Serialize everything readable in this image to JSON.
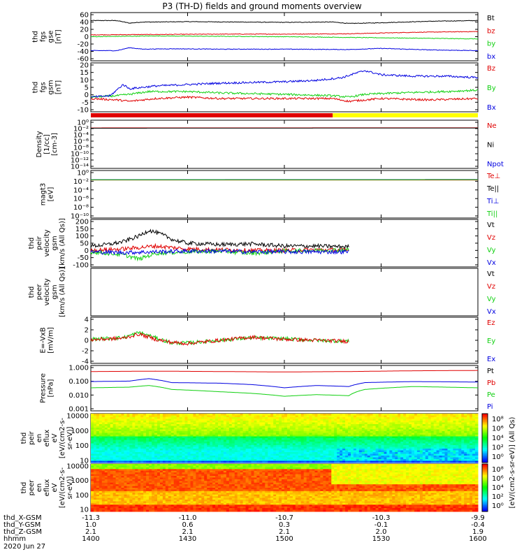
{
  "title": "P3 (TH-D) fields and ground moments overview",
  "colors": {
    "black": "#000000",
    "red": "#e00000",
    "green": "#10d010",
    "blue": "#0000e0",
    "yellow": "#ffff00"
  },
  "chart_data": [
    {
      "type": "line",
      "ylabel": [
        "thd",
        "fgs",
        "gse",
        "[nT]"
      ],
      "ylim": [
        -60,
        60
      ],
      "yticks": [
        "60",
        "40",
        "20",
        "0",
        "-20",
        "-40",
        "-60"
      ],
      "legend": [
        {
          "name": "Bt",
          "color": "#000000"
        },
        {
          "name": "bz",
          "color": "#e00000"
        },
        {
          "name": "by",
          "color": "#10d010"
        },
        {
          "name": "bx",
          "color": "#0000e0"
        }
      ],
      "series": [
        {
          "name": "Bt",
          "color": "#000000",
          "t": [
            1400,
            1408,
            1412,
            1416,
            1420,
            1430,
            1445,
            1500,
            1515,
            1520,
            1530,
            1545,
            1600
          ],
          "y": [
            44,
            44,
            37,
            40,
            40,
            41,
            40,
            39,
            40,
            36,
            38,
            42,
            44
          ]
        },
        {
          "name": "bz",
          "color": "#e00000",
          "t": [
            1400,
            1420,
            1440,
            1500,
            1520,
            1540,
            1600
          ],
          "y": [
            5,
            6,
            7,
            7,
            8,
            12,
            14
          ]
        },
        {
          "name": "by",
          "color": "#10d010",
          "t": [
            1400,
            1410,
            1420,
            1440,
            1500,
            1520,
            1540,
            1600
          ],
          "y": [
            0,
            1,
            2,
            1,
            0,
            -2,
            -4,
            -6
          ]
        },
        {
          "name": "bx",
          "color": "#0000e0",
          "t": [
            1400,
            1408,
            1412,
            1416,
            1425,
            1440,
            1500,
            1520,
            1530,
            1545,
            1600
          ],
          "y": [
            -38,
            -38,
            -30,
            -34,
            -33,
            -34,
            -34,
            -35,
            -32,
            -36,
            -38
          ]
        }
      ]
    },
    {
      "type": "line",
      "ylabel": [
        "thd",
        "fgs",
        "gsm",
        "[nT]"
      ],
      "ylim": [
        -12,
        20
      ],
      "yticks": [
        "20",
        "15",
        "10",
        "5",
        "0",
        "-5",
        "-10"
      ],
      "legend": [
        {
          "name": "Bz",
          "color": "#e00000"
        },
        {
          "name": "By",
          "color": "#10d010"
        },
        {
          "name": "Bx",
          "color": "#0000e0"
        }
      ],
      "series": [
        {
          "name": "Bz",
          "color": "#e00000",
          "t": [
            1400,
            1408,
            1412,
            1420,
            1430,
            1440,
            1500,
            1515,
            1520,
            1530,
            1545,
            1600
          ],
          "y": [
            -4,
            -5,
            -6,
            -4,
            -3,
            -4,
            -4,
            -4,
            -6,
            -4,
            -5,
            -4
          ]
        },
        {
          "name": "By",
          "color": "#10d010",
          "t": [
            1400,
            1408,
            1412,
            1418,
            1430,
            1440,
            1500,
            1515,
            1520,
            1525,
            1535,
            1550,
            1600
          ],
          "y": [
            -3,
            -2,
            -1,
            1,
            1,
            0,
            -1,
            -2,
            -3,
            -1,
            0,
            1,
            2
          ]
        },
        {
          "name": "Bx",
          "color": "#0000e0",
          "t": [
            1400,
            1406,
            1410,
            1412,
            1420,
            1430,
            1440,
            1500,
            1510,
            1518,
            1522,
            1525,
            1530,
            1540,
            1550,
            1600
          ],
          "y": [
            -3,
            -2,
            6,
            3,
            5,
            6,
            7,
            8,
            9,
            11,
            14,
            16,
            13,
            12,
            12,
            11
          ]
        }
      ]
    },
    {
      "type": "line",
      "ylabel": [
        "Density",
        "[1/cc]",
        "[cm-3]"
      ],
      "ylim_log": [
        -14,
        2
      ],
      "yticks": [
        "10⁰",
        "10⁻²",
        "10⁻⁴",
        "10⁻⁶",
        "10⁻⁸",
        "10⁻¹⁰",
        "10⁻¹²",
        "10⁻¹⁴"
      ],
      "legend": [
        {
          "name": "Ne",
          "color": "#e00000"
        },
        {
          "name": "Ni",
          "color": "#000000"
        },
        {
          "name": "Npot",
          "color": "#0000e0"
        }
      ],
      "series": [
        {
          "name": "Ne",
          "color": "#e00000",
          "t": [
            1400,
            1600
          ],
          "y": [
            0.9,
            1.0
          ]
        },
        {
          "name": "Ni",
          "color": "#000000",
          "t": [
            1400,
            1600
          ],
          "y": [
            0.7,
            0.8
          ]
        }
      ]
    },
    {
      "type": "line",
      "ylabel": [
        "magt3",
        "[eV]"
      ],
      "ylim_log": [
        -10,
        2
      ],
      "yticks": [
        "10⁰",
        "10⁻²",
        "10⁻⁴",
        "10⁻⁶",
        "10⁻⁸",
        "10⁻¹⁰"
      ],
      "legend": [
        {
          "name": "Te⊥",
          "color": "#e00000"
        },
        {
          "name": "Te||",
          "color": "#000000"
        },
        {
          "name": "Ti⊥",
          "color": "#0000e0"
        },
        {
          "name": "Ti||",
          "color": "#10d010"
        }
      ],
      "series": [
        {
          "name": "Te⊥",
          "color": "#e00000",
          "t": [
            1400,
            1600
          ],
          "y": [
            0.9,
            0.9
          ]
        },
        {
          "name": "Ti⊥",
          "color": "#0000e0",
          "t": [
            1400,
            1600
          ],
          "y": [
            1.1,
            1.2
          ]
        },
        {
          "name": "Ti||",
          "color": "#10d010",
          "t": [
            1400,
            1600
          ],
          "y": [
            1.0,
            1.1
          ]
        }
      ]
    },
    {
      "type": "line",
      "ylabel": [
        "thd",
        "peir",
        "velocity",
        "gsm",
        "[km/s (All Qs)]"
      ],
      "ylim": [
        -100,
        200
      ],
      "yticks": [
        "200",
        "150",
        "100",
        "50",
        "0",
        "-50",
        "-100"
      ],
      "legend": [
        {
          "name": "Vt",
          "color": "#000000"
        },
        {
          "name": "Vz",
          "color": "#e00000"
        },
        {
          "name": "Vy",
          "color": "#10d010"
        },
        {
          "name": "Vx",
          "color": "#0000e0"
        }
      ],
      "series": [
        {
          "name": "Vt",
          "color": "#000000",
          "t": [
            1400,
            1405,
            1410,
            1415,
            1418,
            1422,
            1426,
            1430,
            1440,
            1450,
            1500,
            1510,
            1520
          ],
          "y": [
            30,
            40,
            60,
            100,
            140,
            110,
            70,
            50,
            40,
            45,
            30,
            30,
            25
          ]
        },
        {
          "name": "Vz",
          "color": "#e00000",
          "t": [
            1400,
            1410,
            1420,
            1430,
            1440,
            1450,
            1500,
            1510,
            1520
          ],
          "y": [
            0,
            10,
            30,
            10,
            5,
            0,
            0,
            5,
            0
          ]
        },
        {
          "name": "Vy",
          "color": "#10d010",
          "t": [
            1400,
            1410,
            1415,
            1420,
            1430,
            1440,
            1450,
            1500,
            1510,
            1520
          ],
          "y": [
            -10,
            -30,
            -60,
            -20,
            -10,
            -5,
            -20,
            -5,
            0,
            5
          ]
        },
        {
          "name": "Vx",
          "color": "#0000e0",
          "t": [
            1400,
            1410,
            1420,
            1430,
            1440,
            1450,
            1500,
            1510,
            1520
          ],
          "y": [
            -10,
            -15,
            -10,
            -5,
            -5,
            -10,
            -10,
            -10,
            -10
          ]
        }
      ]
    },
    {
      "type": "line",
      "ylabel": [
        "thd",
        "peer",
        "velocity",
        "gsm",
        "[km/s (All Qs)]"
      ],
      "legend": [
        {
          "name": "Vt",
          "color": "#000000"
        },
        {
          "name": "Vz",
          "color": "#e00000"
        },
        {
          "name": "Vy",
          "color": "#10d010"
        },
        {
          "name": "Vx",
          "color": "#0000e0"
        }
      ],
      "series": []
    },
    {
      "type": "line",
      "ylabel": [
        "E=-VxB",
        "[mV/m]"
      ],
      "ylim": [
        -4,
        4
      ],
      "yticks": [
        "4",
        "2",
        "0",
        "-2",
        "-4"
      ],
      "legend": [
        {
          "name": "Ez",
          "color": "#e00000"
        },
        {
          "name": "Ey",
          "color": "#10d010"
        },
        {
          "name": "Ex",
          "color": "#0000e0"
        }
      ],
      "series": [
        {
          "name": "Ey",
          "color": "#10d010",
          "t": [
            1400,
            1410,
            1415,
            1420,
            1425,
            1430,
            1440,
            1450,
            1500,
            1510,
            1520
          ],
          "y": [
            0.2,
            0.5,
            1.5,
            0.5,
            -0.5,
            -0.5,
            0,
            0.5,
            0.3,
            0,
            -0.2
          ]
        },
        {
          "name": "Ez",
          "color": "#e00000",
          "t": [
            1400,
            1410,
            1415,
            1420,
            1425,
            1430,
            1440,
            1450,
            1500,
            1510,
            1520
          ],
          "y": [
            0.1,
            0.4,
            1.2,
            0.2,
            -0.4,
            -0.6,
            0,
            0.6,
            0.2,
            0,
            -0.2
          ]
        }
      ]
    },
    {
      "type": "line",
      "ylabel": [
        "Pressure",
        "[nPa]"
      ],
      "ylim_log": [
        -3,
        0.15
      ],
      "yticks": [
        "1.000",
        "0.100",
        "0.010",
        "0.001"
      ],
      "legend": [
        {
          "name": "Pt",
          "color": "#000000"
        },
        {
          "name": "Pb",
          "color": "#e00000"
        },
        {
          "name": "Pe",
          "color": "#10d010"
        },
        {
          "name": "Pi",
          "color": "#0000e0"
        }
      ],
      "series": [
        {
          "name": "Pb",
          "color": "#e00000",
          "t": [
            1400,
            1420,
            1440,
            1500,
            1520,
            1540,
            1600
          ],
          "y": [
            0.7,
            0.75,
            0.7,
            0.65,
            0.7,
            0.8,
            0.85
          ]
        },
        {
          "name": "Pi",
          "color": "#0000e0",
          "t": [
            1400,
            1412,
            1418,
            1425,
            1440,
            1450,
            1500,
            1510,
            1520,
            1525,
            1540,
            1600
          ],
          "y": [
            0.12,
            0.13,
            0.2,
            0.1,
            0.09,
            0.07,
            0.04,
            0.06,
            0.05,
            0.1,
            0.12,
            0.11
          ]
        },
        {
          "name": "Pe",
          "color": "#10d010",
          "t": [
            1400,
            1412,
            1418,
            1425,
            1440,
            1450,
            1500,
            1510,
            1520,
            1525,
            1540,
            1600
          ],
          "y": [
            0.04,
            0.045,
            0.06,
            0.03,
            0.02,
            0.015,
            0.009,
            0.012,
            0.01,
            0.03,
            0.05,
            0.04
          ]
        }
      ]
    },
    {
      "type": "heatmap",
      "ylabel": [
        "thd",
        "peir",
        "en",
        "eflux",
        "eV",
        "[eV/(cm2-s-",
        "sr-eV)]"
      ],
      "yticks": [
        "10000",
        "1000",
        "100",
        "10"
      ]
    },
    {
      "type": "heatmap",
      "ylabel": [
        "thd",
        "peer",
        "en",
        "eflux",
        "eV",
        "[eV/(cm2-s-",
        "sr-eV)]"
      ],
      "yticks": [
        "10000",
        "1000",
        "100",
        "10"
      ]
    }
  ],
  "colorbars": {
    "ticks": [
      "10⁸",
      "10⁶",
      "10⁴",
      "10²",
      "10⁰"
    ],
    "label": "[eV/(cm2-s-sr-eV)] (All Qs)"
  },
  "x_axis": {
    "ticks": [
      1400,
      1430,
      1500,
      1530,
      1600
    ],
    "rows": [
      {
        "name": "thd_X-GSM",
        "values": [
          "-11.3",
          "-11.0",
          "-10.7",
          "-10.3",
          "-9.9"
        ]
      },
      {
        "name": "thd_Y-GSM",
        "values": [
          "1.0",
          "0.6",
          "0.3",
          "-0.1",
          "-0.4"
        ]
      },
      {
        "name": "thd_Z-GSM",
        "values": [
          "2.1",
          "2.1",
          "2.1",
          "2.0",
          "1.9"
        ]
      },
      {
        "name": "hhmm",
        "values": [
          "1400",
          "1430",
          "1500",
          "1530",
          "1600"
        ]
      }
    ],
    "date": "2020 Jun 27"
  }
}
